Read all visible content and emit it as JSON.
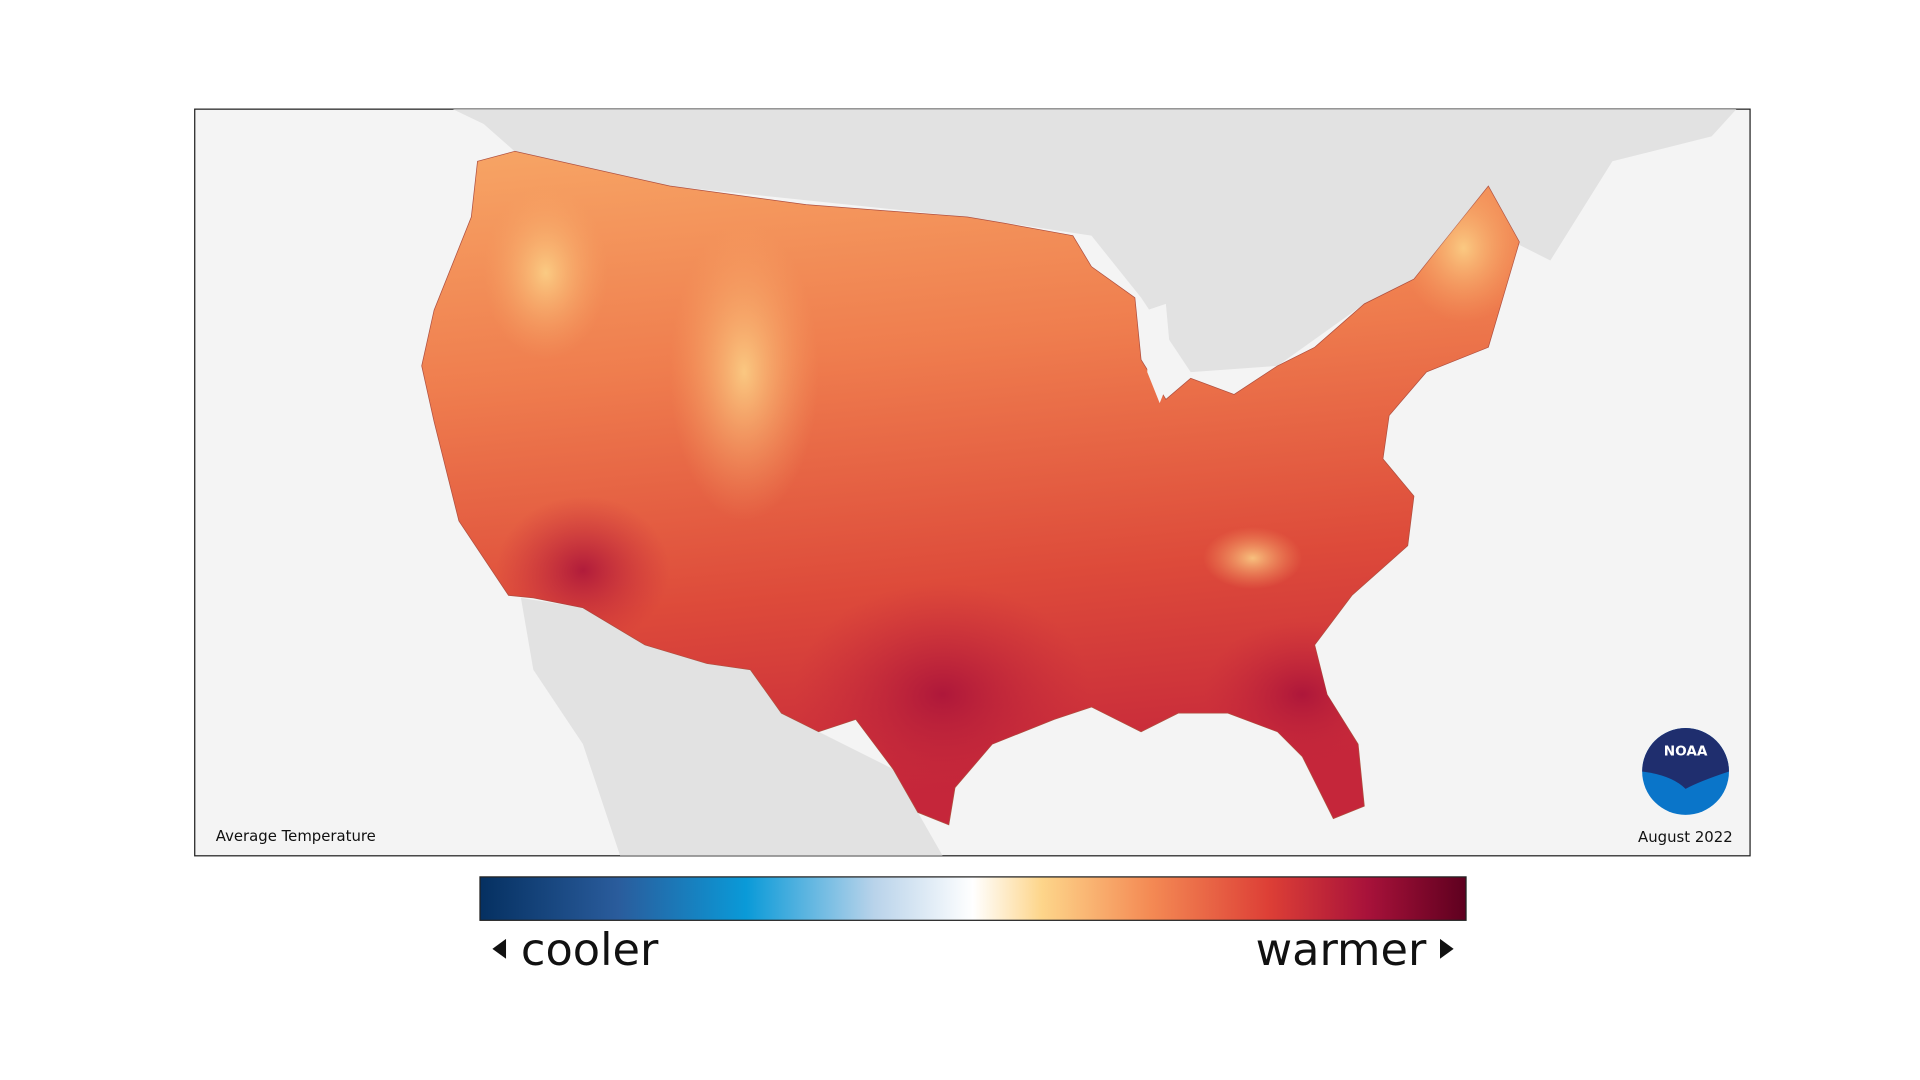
{
  "map": {
    "title": "Average Temperature",
    "date": "August 2022"
  },
  "legend": {
    "low_label": "cooler",
    "high_label": "warmer"
  },
  "logo": {
    "text": "NOAA"
  }
}
